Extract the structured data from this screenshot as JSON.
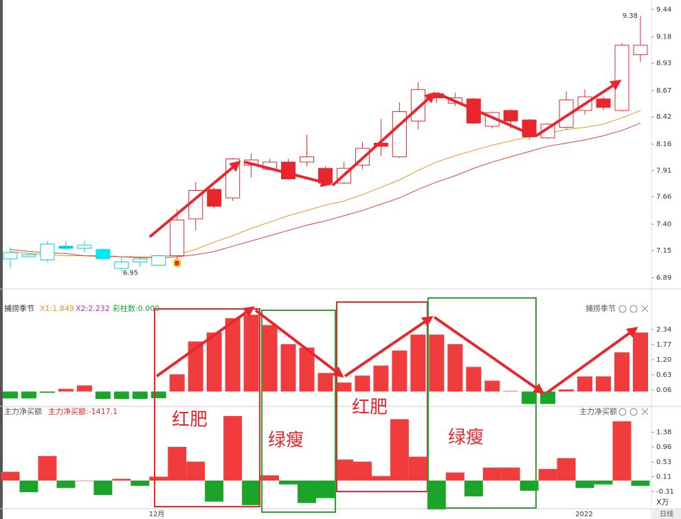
{
  "chart_data": [
    {
      "type": "candlestick",
      "open": [
        7.07,
        7.09,
        7.06,
        7.17,
        7.17,
        7.16,
        6.98,
        7.04,
        7.01,
        7.1,
        7.45,
        7.73,
        7.65,
        7.96,
        7.92,
        7.99,
        7.99,
        7.93,
        7.79,
        7.96,
        8.17,
        8.04,
        8.38,
        8.64,
        8.55,
        8.59,
        8.33,
        8.48,
        8.39,
        8.22,
        8.32,
        8.48,
        8.59,
        8.48,
        9.01
      ],
      "high": [
        7.18,
        7.12,
        7.24,
        7.24,
        7.24,
        7.17,
        7.1,
        7.1,
        7.11,
        7.54,
        7.8,
        7.75,
        8.03,
        8.07,
        8.02,
        8.02,
        8.25,
        7.95,
        7.99,
        8.18,
        8.4,
        8.56,
        8.75,
        8.65,
        8.65,
        8.6,
        8.47,
        8.49,
        8.4,
        8.36,
        8.66,
        8.68,
        8.61,
        9.12,
        9.38
      ],
      "low": [
        6.98,
        7.08,
        7.04,
        7.16,
        7.13,
        7.06,
        6.95,
        6.99,
        7.0,
        7.06,
        7.34,
        7.55,
        7.62,
        7.84,
        7.91,
        7.82,
        7.95,
        7.78,
        7.78,
        7.92,
        8.05,
        8.03,
        8.3,
        8.55,
        8.52,
        8.35,
        8.31,
        8.31,
        8.2,
        8.21,
        8.3,
        8.44,
        8.48,
        8.47,
        8.94
      ],
      "close": [
        7.13,
        7.11,
        7.21,
        7.19,
        7.2,
        7.07,
        7.04,
        7.07,
        7.1,
        7.44,
        7.72,
        7.57,
        8.02,
        8.01,
        7.99,
        7.83,
        8.04,
        7.79,
        7.93,
        8.12,
        8.14,
        8.47,
        8.68,
        8.6,
        8.6,
        8.36,
        8.46,
        8.38,
        8.23,
        8.35,
        8.58,
        8.61,
        8.51,
        9.1,
        9.1
      ],
      "candle_colors": [
        "#00cfe0",
        "#00cfe0",
        "#00cfe0",
        "#00cfe0",
        "#00cfe0",
        "#00e8f0",
        "#00cfe0",
        "#00cfe0",
        "#00cfe0",
        "#e8262b",
        "#e8262b",
        "#e8262b",
        "#e8262b",
        "#e8262b",
        "#e8262b",
        "#e8262b",
        "#e8262b",
        "#e8262b",
        "#e8262b",
        "#e8262b",
        "#e8262b",
        "#e8262b",
        "#e8262b",
        "#e8262b",
        "#e8262b",
        "#e8262b",
        "#e8262b",
        "#e8262b",
        "#e8262b",
        "#e8262b",
        "#e8262b",
        "#e8262b",
        "#e8262b",
        "#e8262b",
        "#e8262b"
      ],
      "candle_filled": [
        false,
        false,
        false,
        true,
        false,
        true,
        false,
        false,
        false,
        false,
        false,
        true,
        false,
        false,
        false,
        true,
        false,
        true,
        false,
        false,
        true,
        false,
        false,
        true,
        false,
        true,
        false,
        true,
        true,
        false,
        false,
        false,
        true,
        false,
        false
      ],
      "series": [
        {
          "color": "#e8961e",
          "values": [
            7.14,
            7.12,
            7.11,
            7.1,
            7.1,
            7.09,
            7.09,
            7.09,
            7.09,
            7.11,
            7.16,
            7.23,
            7.29,
            7.36,
            7.42,
            7.48,
            7.53,
            7.58,
            7.62,
            7.68,
            7.75,
            7.82,
            7.91,
            7.99,
            8.05,
            8.1,
            8.15,
            8.19,
            8.23,
            8.26,
            8.3,
            8.32,
            8.35,
            8.41,
            8.48
          ]
        },
        {
          "color": "#e83a3a",
          "values": [
            7.16,
            7.14,
            7.13,
            7.12,
            7.1,
            7.1,
            7.09,
            7.08,
            7.08,
            7.09,
            7.11,
            7.14,
            7.19,
            7.24,
            7.29,
            7.34,
            7.39,
            7.43,
            7.48,
            7.53,
            7.59,
            7.65,
            7.73,
            7.8,
            7.86,
            7.93,
            7.99,
            8.04,
            8.09,
            8.14,
            8.17,
            8.2,
            8.24,
            8.29,
            8.36
          ]
        }
      ],
      "max_label": 9.38,
      "min_label": 6.95,
      "signal_label": "B",
      "ylim": [
        6.79,
        9.53
      ],
      "yticks": [
        9.44,
        9.18,
        8.93,
        8.67,
        8.42,
        8.16,
        7.91,
        7.66,
        {
          "value": 7.4,
          "label": "7.40"
        },
        7.15,
        6.89
      ]
    },
    {
      "type": "bar",
      "title": "捕捞季节",
      "legend": [
        "X1:1.849",
        "X2:2.232",
        "彩柱数:0.000"
      ],
      "values": [
        -0.26,
        -0.26,
        -0.05,
        0.1,
        0.23,
        -0.28,
        -0.28,
        -0.28,
        -0.25,
        0.65,
        1.89,
        2.23,
        2.77,
        2.9,
        2.51,
        1.79,
        1.66,
        0.7,
        0.34,
        0.6,
        0.98,
        1.55,
        2.15,
        2.15,
        1.79,
        0.93,
        0.41,
        0.02,
        -0.47,
        -0.47,
        0.08,
        0.57,
        0.57,
        1.48,
        2.23
      ],
      "up_color": "#f03c3c",
      "down_color": "#1aa52a",
      "ylim": [
        -0.51,
        2.99
      ],
      "yticks": [
        2.34,
        1.77,
        {
          "value": 1.2,
          "label": "1.20"
        },
        0.63,
        0.06
      ],
      "annotations": [
        "红肥",
        "绿瘦",
        "红肥",
        "绿瘦"
      ]
    },
    {
      "type": "bar",
      "title": "主力净买额",
      "subtitle": "主力净买额:-1417.1",
      "unit": "X万",
      "values": [
        0.25,
        -0.33,
        0.7,
        -0.21,
        0.0,
        -0.41,
        0.05,
        -0.15,
        0.11,
        0.96,
        0.54,
        -0.6,
        1.84,
        -0.7,
        0.15,
        -0.11,
        -0.64,
        -0.5,
        0.6,
        0.54,
        0.13,
        1.75,
        0.68,
        -0.82,
        0.23,
        -0.45,
        0.37,
        0.37,
        -0.29,
        0.33,
        0.64,
        -0.21,
        -0.11,
        1.69,
        -0.15
      ],
      "up_color": "#f03c3c",
      "down_color": "#1aa52a",
      "ylim": [
        -0.88,
        1.86
      ],
      "yticks": [
        1.38,
        0.96,
        0.53,
        0.11,
        -0.31
      ],
      "x_labels": [
        "12月",
        "2022"
      ],
      "period": "日线"
    }
  ]
}
